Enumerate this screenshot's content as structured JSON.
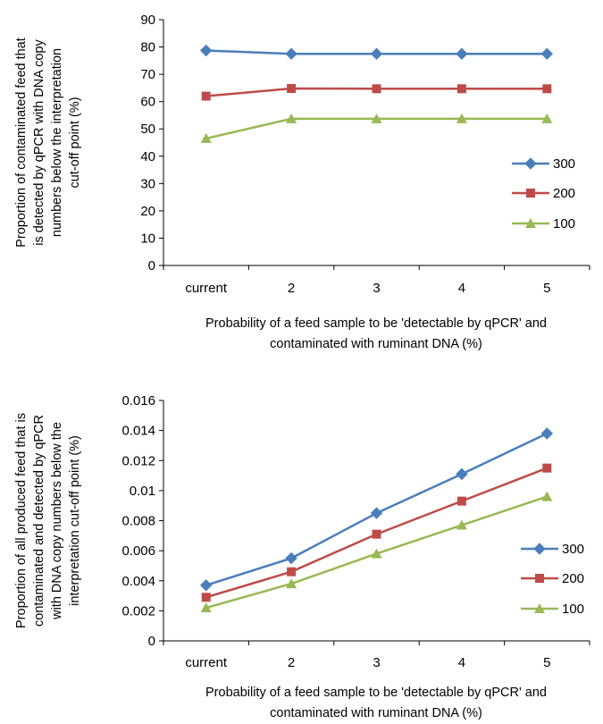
{
  "chart_data": [
    {
      "type": "line",
      "categories": [
        "current",
        "2",
        "3",
        "4",
        "5"
      ],
      "ylim": [
        0,
        90
      ],
      "yticks": [
        0,
        10,
        20,
        30,
        40,
        50,
        60,
        70,
        80,
        90
      ],
      "ytick_labels": [
        "0",
        "10",
        "20",
        "30",
        "40",
        "50",
        "60",
        "70",
        "80",
        "90"
      ],
      "grid": false,
      "legend_position": "right",
      "ylabel_lines": [
        "Proportion of contaminated feed that",
        "is detected by qPCR with DNA  copy",
        "numbers below the interpretation",
        "cut-off point (%)"
      ],
      "xlabel_lines": [
        "Probability of a feed  sample to be 'detectable by qPCR' and",
        "contaminated with ruminant DNA  (%)"
      ],
      "series": [
        {
          "name": "300",
          "color": "#4a7ebb",
          "marker": "diamond",
          "values": [
            78.7,
            77.5,
            77.5,
            77.5,
            77.5
          ]
        },
        {
          "name": "200",
          "color": "#be4b48",
          "marker": "square",
          "values": [
            62.0,
            64.8,
            64.7,
            64.7,
            64.7
          ]
        },
        {
          "name": "100",
          "color": "#98b954",
          "marker": "triangle",
          "values": [
            46.5,
            53.7,
            53.7,
            53.7,
            53.7
          ]
        }
      ]
    },
    {
      "type": "line",
      "categories": [
        "current",
        "2",
        "3",
        "4",
        "5"
      ],
      "ylim": [
        0,
        0.016
      ],
      "yticks": [
        0,
        0.002,
        0.004,
        0.006,
        0.008,
        0.01,
        0.012,
        0.014,
        0.016
      ],
      "ytick_labels": [
        "0",
        "0.002",
        "0.004",
        "0.006",
        "0.008",
        "0.01",
        "0.012",
        "0.014",
        "0.016"
      ],
      "grid": false,
      "legend_position": "right",
      "ylabel_lines": [
        "Proportion of all produced feed that is",
        "contaminated and detected by qPCR",
        "with DNA copy numbers below the",
        "interpretation cut-off point (%)"
      ],
      "xlabel_lines": [
        "Probability of a feed  sample to be 'detectable by qPCR' and",
        "contaminated with ruminant DNA  (%)"
      ],
      "series": [
        {
          "name": "300",
          "color": "#4a7ebb",
          "marker": "diamond",
          "values": [
            0.0037,
            0.0055,
            0.0085,
            0.0111,
            0.0138
          ]
        },
        {
          "name": "200",
          "color": "#be4b48",
          "marker": "square",
          "values": [
            0.0029,
            0.0046,
            0.0071,
            0.0093,
            0.0115
          ]
        },
        {
          "name": "100",
          "color": "#98b954",
          "marker": "triangle",
          "values": [
            0.0022,
            0.0038,
            0.0058,
            0.0077,
            0.0096
          ]
        }
      ]
    }
  ]
}
